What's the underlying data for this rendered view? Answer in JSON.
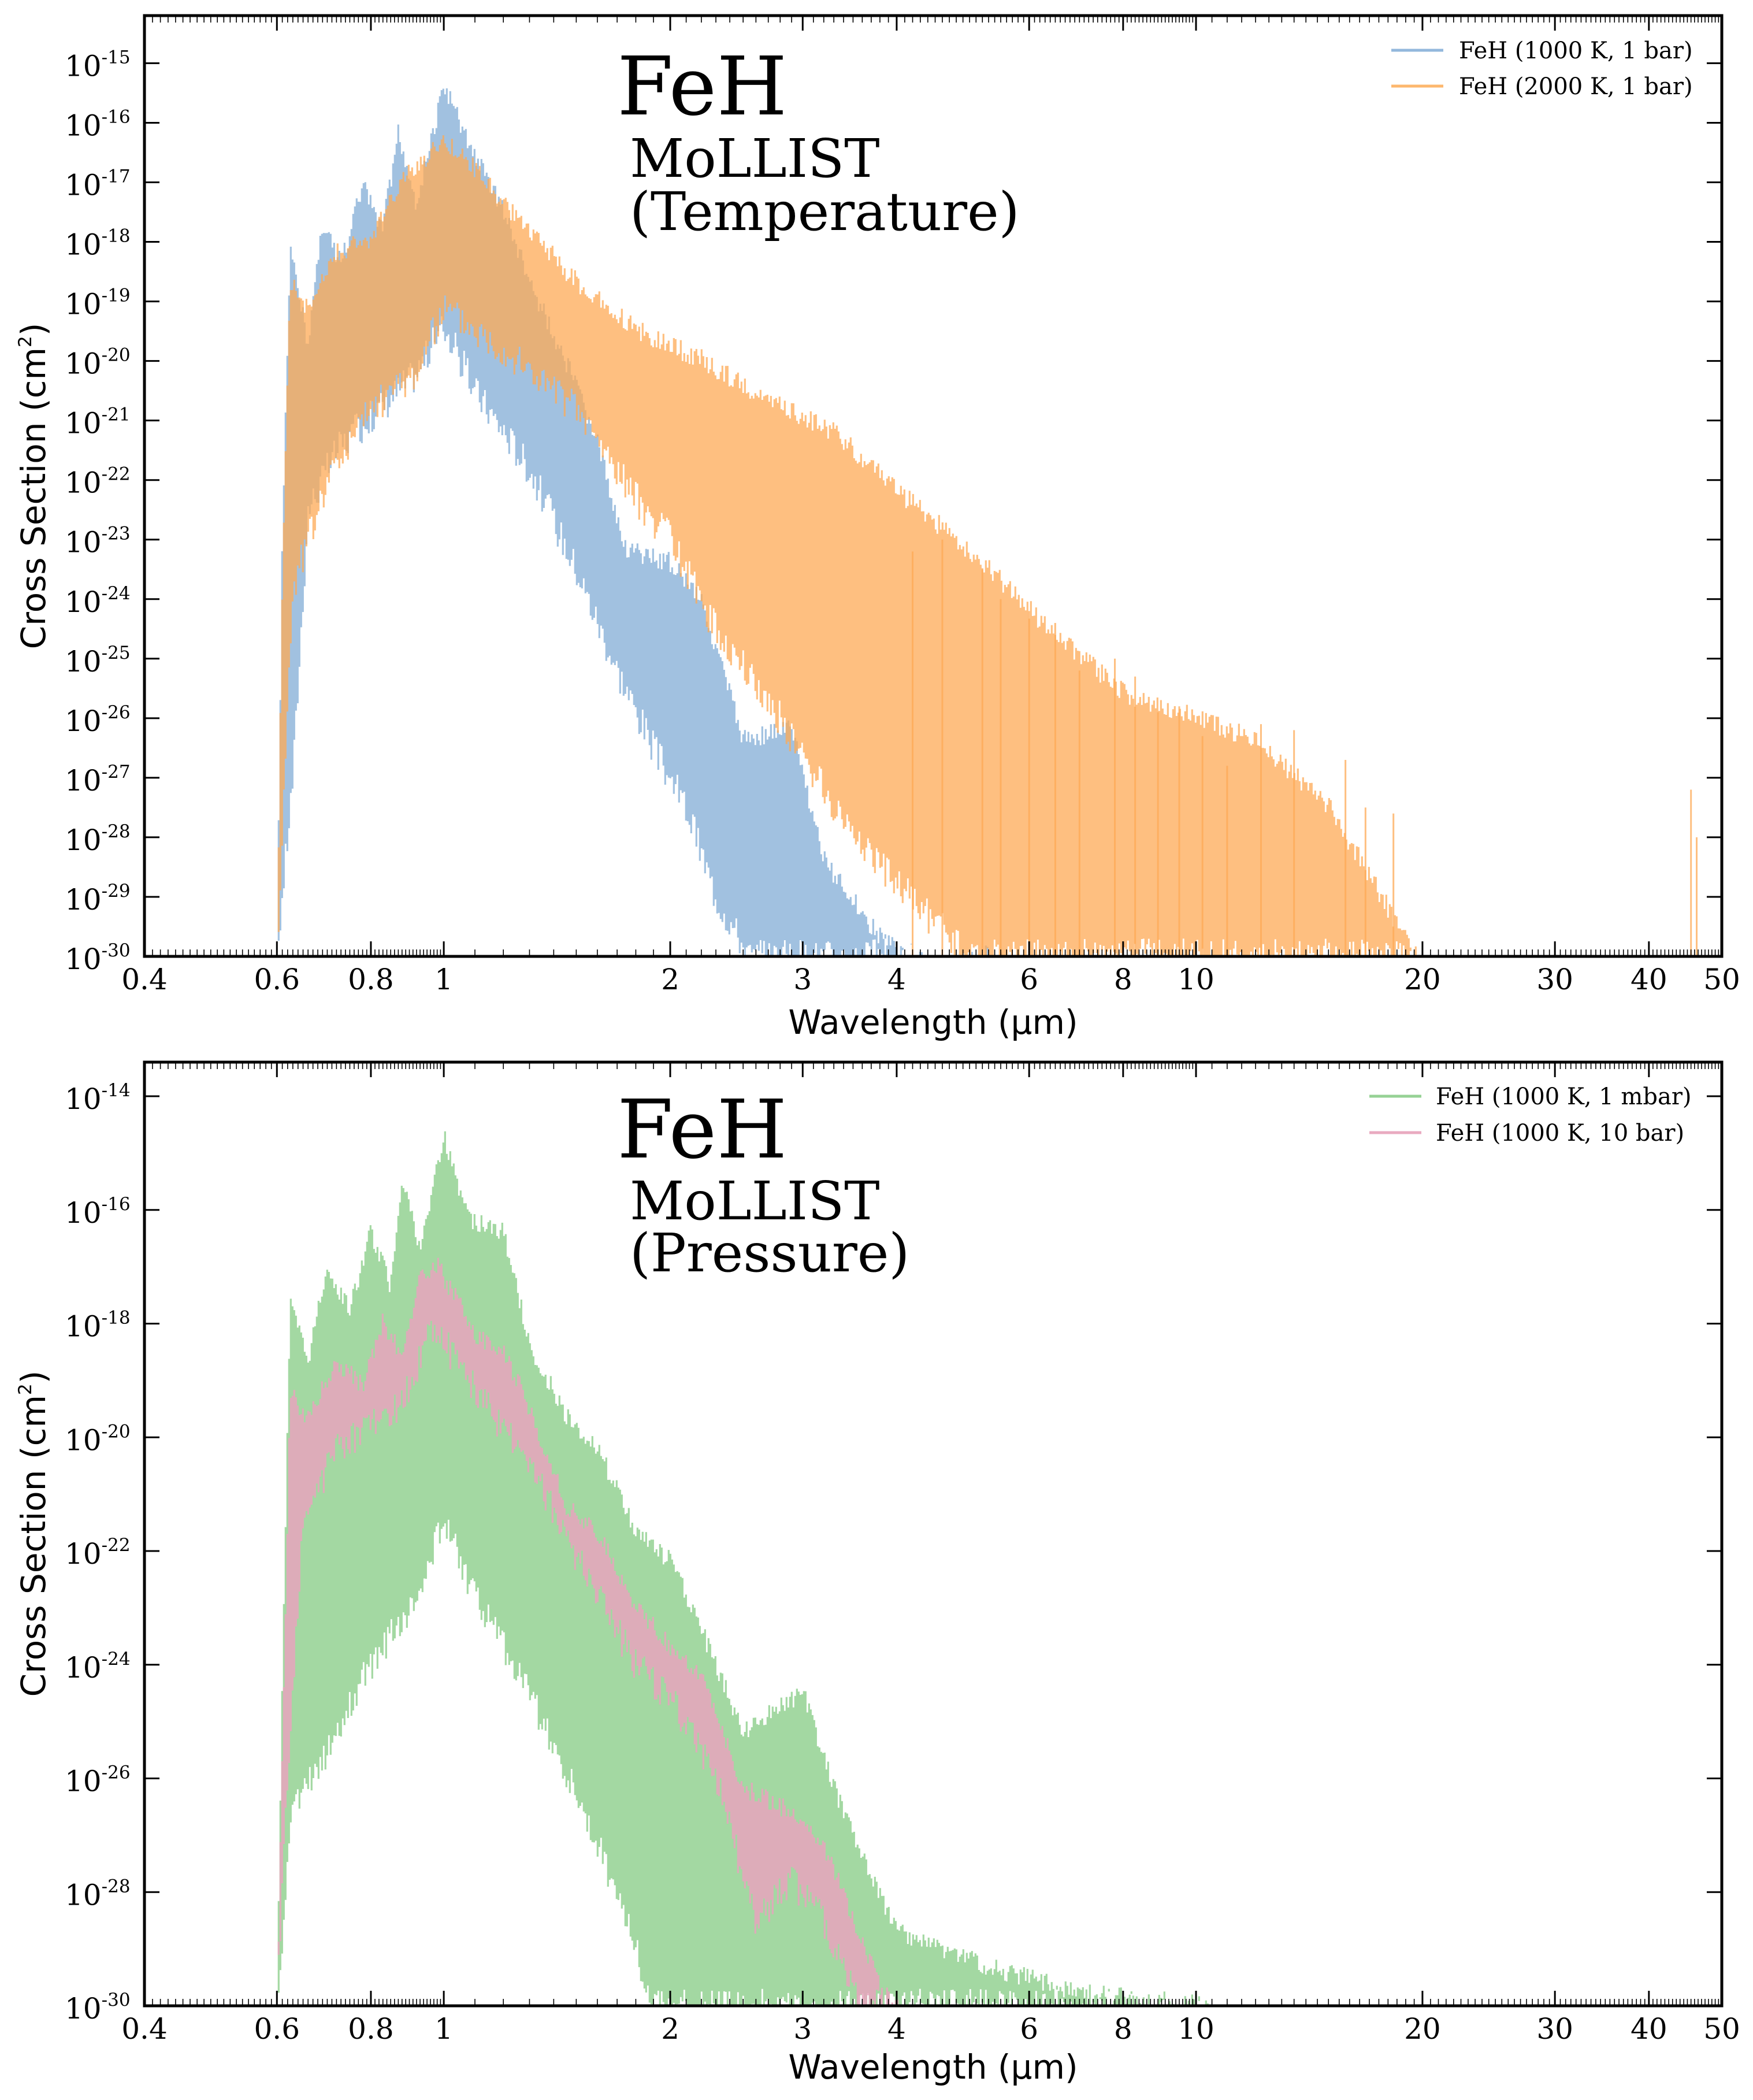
{
  "chart_data": [
    {
      "type": "area",
      "title": "FeH",
      "subtitle_line1": "MoLLIST",
      "subtitle_line2": "(Temperature)",
      "xlabel": "Wavelength (μm)",
      "ylabel": "Cross Section (cm",
      "ylabel_exp": "2",
      "ylabel_end": ")",
      "x_scale": "log",
      "y_scale": "log",
      "xlim": [
        0.4,
        50
      ],
      "ylim_exp": [
        -30,
        -14.2
      ],
      "x_ticks": [
        0.4,
        0.6,
        0.8,
        1,
        2,
        3,
        4,
        6,
        8,
        10,
        20,
        30,
        40,
        50
      ],
      "x_tick_labels": [
        "0.4",
        "0.6",
        "0.8",
        "1",
        "2",
        "3",
        "4",
        "6",
        "8",
        "10",
        "20",
        "30",
        "40",
        "50"
      ],
      "y_tick_exps": [
        -15,
        -16,
        -17,
        -18,
        -19,
        -20,
        -21,
        -22,
        -23,
        -24,
        -25,
        -26,
        -27,
        -28,
        -29,
        -30
      ],
      "y_tick_base": "10",
      "legend_position": "top-right",
      "grid": false,
      "series": [
        {
          "name": "FeH (1000 K, 1 bar)",
          "color": "#6fa0d0",
          "opacity": 0.65,
          "peaks": [
            [
              0.6,
              -30
            ],
            [
              0.61,
              -22.8
            ],
            [
              0.625,
              -18.0
            ],
            [
              0.66,
              -19.5
            ],
            [
              0.69,
              -17.5
            ],
            [
              0.73,
              -18.2
            ],
            [
              0.78,
              -16.9
            ],
            [
              0.83,
              -17.6
            ],
            [
              0.87,
              -16.0
            ],
            [
              0.92,
              -17.2
            ],
            [
              1.0,
              -15.2
            ],
            [
              1.08,
              -16.2
            ],
            [
              1.19,
              -17.2
            ],
            [
              1.3,
              -18.5
            ],
            [
              1.45,
              -19.8
            ],
            [
              1.6,
              -21.2
            ],
            [
              1.75,
              -23.0
            ],
            [
              2.0,
              -23.2
            ],
            [
              2.2,
              -23.8
            ],
            [
              2.5,
              -26.2
            ],
            [
              2.9,
              -26.0
            ],
            [
              3.2,
              -28.2
            ],
            [
              3.8,
              -29.5
            ],
            [
              4.5,
              -30
            ],
            [
              5.3,
              -29.8
            ],
            [
              6.0,
              -30
            ]
          ],
          "floor": [
            [
              0.6,
              -30
            ],
            [
              0.63,
              -27.0
            ],
            [
              0.66,
              -22.5
            ],
            [
              0.72,
              -21.5
            ],
            [
              0.82,
              -20.8
            ],
            [
              0.92,
              -20.2
            ],
            [
              1.0,
              -19.4
            ],
            [
              1.1,
              -20.5
            ],
            [
              1.3,
              -21.8
            ],
            [
              1.5,
              -23.5
            ],
            [
              1.7,
              -25.2
            ],
            [
              1.9,
              -26.5
            ],
            [
              2.1,
              -27.5
            ],
            [
              2.3,
              -29.0
            ],
            [
              2.55,
              -30
            ],
            [
              6.0,
              -30
            ]
          ]
        },
        {
          "name": "FeH (2000 K, 1 bar)",
          "color": "#fdaa55",
          "opacity": 0.75,
          "peaks": [
            [
              0.6,
              -30
            ],
            [
              0.61,
              -23.5
            ],
            [
              0.625,
              -18.5
            ],
            [
              0.66,
              -19.0
            ],
            [
              0.72,
              -18.0
            ],
            [
              0.8,
              -17.8
            ],
            [
              0.88,
              -16.8
            ],
            [
              1.0,
              -16.1
            ],
            [
              1.1,
              -16.6
            ],
            [
              1.25,
              -17.4
            ],
            [
              1.5,
              -18.5
            ],
            [
              1.8,
              -19.3
            ],
            [
              2.2,
              -19.8
            ],
            [
              2.7,
              -20.5
            ],
            [
              3.3,
              -21.0
            ],
            [
              4.0,
              -22.0
            ],
            [
              5.0,
              -23.0
            ],
            [
              6.0,
              -24.0
            ],
            [
              8.0,
              -25.4
            ],
            [
              10.0,
              -25.8
            ],
            [
              12.0,
              -26.2
            ],
            [
              15.0,
              -27.3
            ],
            [
              20.0,
              -30
            ]
          ],
          "floor": [
            [
              0.6,
              -30
            ],
            [
              0.63,
              -23.8
            ],
            [
              0.7,
              -22.0
            ],
            [
              0.8,
              -20.8
            ],
            [
              0.92,
              -20.2
            ],
            [
              1.0,
              -19.1
            ],
            [
              1.2,
              -19.8
            ],
            [
              1.5,
              -20.8
            ],
            [
              1.8,
              -22.3
            ],
            [
              2.0,
              -23.0
            ],
            [
              2.3,
              -24.5
            ],
            [
              2.8,
              -26.0
            ],
            [
              3.3,
              -27.5
            ],
            [
              4.0,
              -28.8
            ],
            [
              5.0,
              -30
            ],
            [
              20.0,
              -30
            ]
          ],
          "spikes": [
            [
              4.2,
              -23.2
            ],
            [
              4.6,
              -23.0
            ],
            [
              5.2,
              -23.5
            ],
            [
              5.5,
              -24.0
            ],
            [
              6.0,
              -24.2
            ],
            [
              6.5,
              -24.6
            ],
            [
              7.0,
              -25.2
            ],
            [
              7.8,
              -25.0
            ],
            [
              8.3,
              -25.3
            ],
            [
              8.9,
              -25.9
            ],
            [
              9.5,
              -25.8
            ],
            [
              10.2,
              -26.3
            ],
            [
              11.0,
              -26.8
            ],
            [
              12.2,
              -26.1
            ],
            [
              13.5,
              -26.2
            ],
            [
              15.8,
              -26.7
            ],
            [
              16.8,
              -27.5
            ],
            [
              18.3,
              -27.6
            ],
            [
              45.5,
              -27.2
            ],
            [
              46.3,
              -28.0
            ]
          ]
        }
      ]
    },
    {
      "type": "area",
      "title": "FeH",
      "subtitle_line1": "MoLLIST",
      "subtitle_line2": "(Pressure)",
      "xlabel": "Wavelength (μm)",
      "ylabel": "Cross Section (cm",
      "ylabel_exp": "2",
      "ylabel_end": ")",
      "x_scale": "log",
      "y_scale": "log",
      "xlim": [
        0.4,
        50
      ],
      "ylim_exp": [
        -30,
        -13.4
      ],
      "x_ticks": [
        0.4,
        0.6,
        0.8,
        1,
        2,
        3,
        4,
        6,
        8,
        10,
        20,
        30,
        40,
        50
      ],
      "x_tick_labels": [
        "0.4",
        "0.6",
        "0.8",
        "1",
        "2",
        "3",
        "4",
        "6",
        "8",
        "10",
        "20",
        "30",
        "40",
        "50"
      ],
      "y_tick_exps": [
        -14,
        -16,
        -18,
        -20,
        -22,
        -24,
        -26,
        -28,
        -30
      ],
      "y_tick_base": "10",
      "legend_position": "top-right",
      "grid": false,
      "series": [
        {
          "name": "FeH (1000 K, 1 mbar)",
          "color": "#7cc77a",
          "opacity": 0.7,
          "peaks": [
            [
              0.6,
              -30
            ],
            [
              0.61,
              -24.0
            ],
            [
              0.625,
              -17.5
            ],
            [
              0.66,
              -18.5
            ],
            [
              0.7,
              -16.8
            ],
            [
              0.75,
              -17.6
            ],
            [
              0.8,
              -16.2
            ],
            [
              0.85,
              -17.2
            ],
            [
              0.88,
              -15.2
            ],
            [
              0.93,
              -16.6
            ],
            [
              1.0,
              -14.5
            ],
            [
              1.08,
              -16.0
            ],
            [
              1.2,
              -16.2
            ],
            [
              1.3,
              -18.2
            ],
            [
              1.45,
              -19.4
            ],
            [
              1.6,
              -20.0
            ],
            [
              1.8,
              -21.5
            ],
            [
              2.0,
              -22.0
            ],
            [
              2.2,
              -23.2
            ],
            [
              2.5,
              -25.0
            ],
            [
              3.0,
              -24.3
            ],
            [
              3.3,
              -26.0
            ],
            [
              4.0,
              -28.5
            ],
            [
              4.5,
              -28.8
            ],
            [
              5.5,
              -29.2
            ],
            [
              7.0,
              -29.6
            ],
            [
              10.0,
              -29.8
            ],
            [
              11.0,
              -30
            ]
          ],
          "floor": [
            [
              0.6,
              -30
            ],
            [
              0.63,
              -26.5
            ],
            [
              0.7,
              -25.5
            ],
            [
              0.8,
              -24.0
            ],
            [
              0.9,
              -23.0
            ],
            [
              1.0,
              -21.5
            ],
            [
              1.1,
              -22.8
            ],
            [
              1.3,
              -24.5
            ],
            [
              1.5,
              -26.3
            ],
            [
              1.7,
              -28.0
            ],
            [
              1.9,
              -30
            ],
            [
              11.0,
              -30
            ]
          ]
        },
        {
          "name": "FeH (1000 K, 10 bar)",
          "color": "#e8a5bd",
          "opacity": 0.85,
          "peaks": [
            [
              0.6,
              -30
            ],
            [
              0.61,
              -25.5
            ],
            [
              0.625,
              -19.0
            ],
            [
              0.66,
              -19.5
            ],
            [
              0.72,
              -18.5
            ],
            [
              0.78,
              -18.9
            ],
            [
              0.83,
              -17.8
            ],
            [
              0.88,
              -18.4
            ],
            [
              0.93,
              -17.0
            ],
            [
              0.98,
              -16.8
            ],
            [
              1.03,
              -17.3
            ],
            [
              1.1,
              -18.0
            ],
            [
              1.2,
              -18.3
            ],
            [
              1.3,
              -19.3
            ],
            [
              1.45,
              -21.0
            ],
            [
              1.6,
              -21.5
            ],
            [
              1.8,
              -22.8
            ],
            [
              2.0,
              -23.5
            ],
            [
              2.2,
              -24.0
            ],
            [
              2.5,
              -26.0
            ],
            [
              3.0,
              -26.5
            ],
            [
              3.2,
              -27.0
            ],
            [
              3.8,
              -29.5
            ],
            [
              4.1,
              -30
            ]
          ],
          "floor": [
            [
              0.6,
              -30
            ],
            [
              0.62,
              -26.0
            ],
            [
              0.65,
              -21.5
            ],
            [
              0.72,
              -20.2
            ],
            [
              0.8,
              -19.8
            ],
            [
              0.88,
              -19.4
            ],
            [
              0.97,
              -18.0
            ],
            [
              1.05,
              -18.8
            ],
            [
              1.15,
              -19.5
            ],
            [
              1.3,
              -20.5
            ],
            [
              1.45,
              -21.7
            ],
            [
              1.6,
              -22.8
            ],
            [
              1.8,
              -24.0
            ],
            [
              2.0,
              -24.6
            ],
            [
              2.3,
              -26.0
            ],
            [
              2.6,
              -28.5
            ],
            [
              2.9,
              -27.8
            ],
            [
              3.2,
              -28.5
            ],
            [
              3.6,
              -30
            ],
            [
              4.1,
              -30
            ]
          ]
        }
      ]
    }
  ]
}
